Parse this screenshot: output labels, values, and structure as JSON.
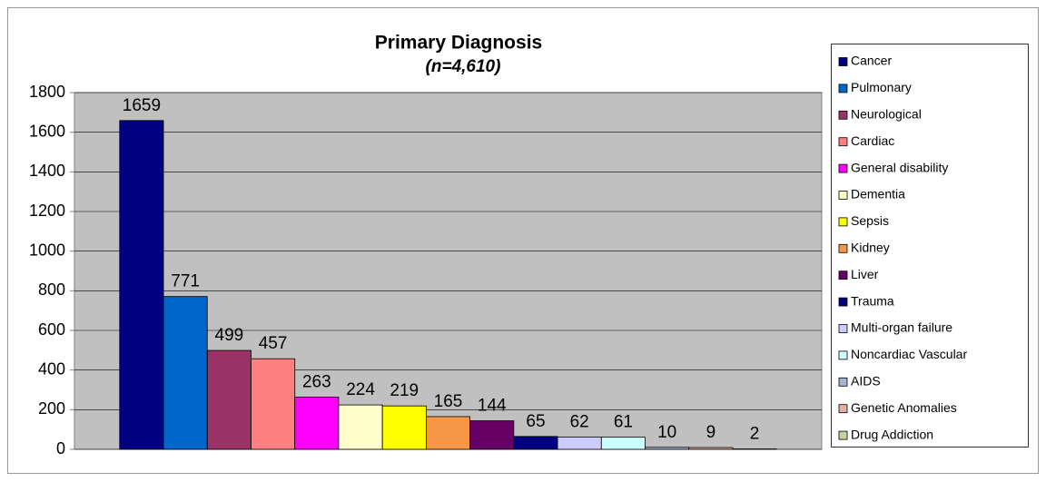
{
  "chart_data": {
    "type": "bar",
    "title": "Primary Diagnosis",
    "subtitle": "(n=4,610)",
    "categories": [
      null
    ],
    "series": [
      {
        "name": "Cancer",
        "color": "#000080",
        "values": [
          1659
        ]
      },
      {
        "name": "Pulmonary",
        "color": "#0066cc",
        "values": [
          771
        ]
      },
      {
        "name": "Neurological",
        "color": "#993366",
        "values": [
          499
        ]
      },
      {
        "name": "Cardiac",
        "color": "#ff8080",
        "values": [
          457
        ]
      },
      {
        "name": "General disability",
        "color": "#ff00ff",
        "values": [
          263
        ]
      },
      {
        "name": "Dementia",
        "color": "#ffffcc",
        "values": [
          224
        ]
      },
      {
        "name": "Sepsis",
        "color": "#ffff00",
        "values": [
          219
        ]
      },
      {
        "name": "Kidney",
        "color": "#f79646",
        "values": [
          165
        ]
      },
      {
        "name": "Liver",
        "color": "#660066",
        "values": [
          144
        ]
      },
      {
        "name": "Trauma",
        "color": "#000080",
        "values": [
          65
        ]
      },
      {
        "name": "Multi-organ failure",
        "color": "#ccccff",
        "values": [
          62
        ]
      },
      {
        "name": "Noncardiac Vascular",
        "color": "#ccffff",
        "values": [
          61
        ]
      },
      {
        "name": "AIDS",
        "color": "#a6b4d4",
        "values": [
          10
        ]
      },
      {
        "name": "Genetic Anomalies",
        "color": "#e6b0a8",
        "values": [
          9
        ]
      },
      {
        "name": "Drug Addiction",
        "color": "#c3d69b",
        "values": [
          2
        ]
      }
    ],
    "ylim": [
      0,
      1800
    ],
    "yticks": [
      0,
      200,
      400,
      600,
      800,
      1000,
      1200,
      1400,
      1600,
      1800
    ],
    "grid": true,
    "legend": "right"
  }
}
